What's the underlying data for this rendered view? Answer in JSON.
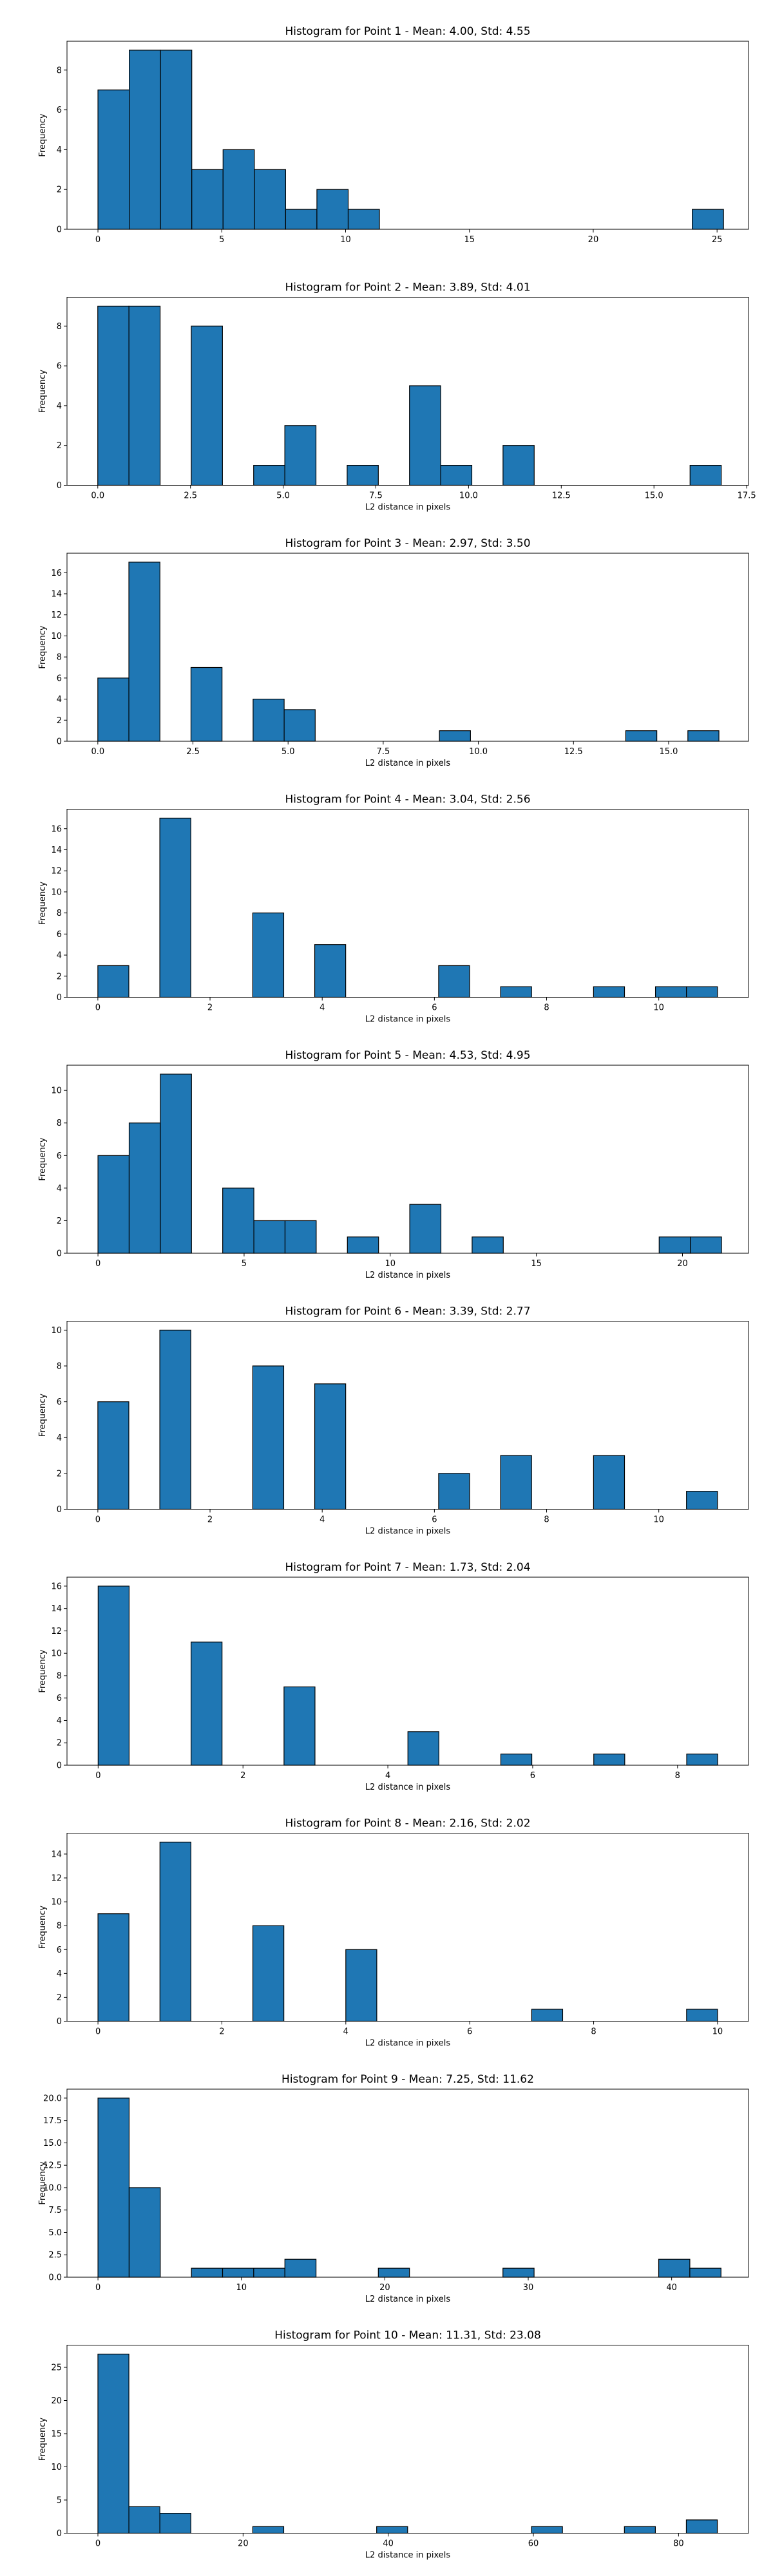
{
  "colors": {
    "bar_fill": "#1f77b4",
    "bar_edge": "#000000",
    "axes": "#000000",
    "background": "#ffffff"
  },
  "chart_data": [
    {
      "type": "bar",
      "title": "Histogram for Point 1 - Mean: 4.00, Std: 4.55",
      "xlabel": "",
      "ylabel": "Frequency",
      "xlim": [
        -1.25,
        26.27
      ],
      "ylim": [
        0,
        9.45
      ],
      "xticks": [
        0,
        5,
        10,
        15,
        20,
        25
      ],
      "xtick_labels": [
        "0",
        "5",
        "10",
        "15",
        "20",
        "25"
      ],
      "yticks": [
        0,
        2,
        4,
        6,
        8
      ],
      "ytick_labels": [
        "0",
        "2",
        "4",
        "6",
        "8"
      ],
      "bin_start": 0,
      "bin_width": 1.263,
      "counts": [
        7,
        9,
        9,
        3,
        4,
        3,
        1,
        2,
        1,
        0,
        0,
        0,
        0,
        0,
        0,
        0,
        0,
        0,
        0,
        1
      ]
    },
    {
      "type": "bar",
      "title": "Histogram for Point 2 - Mean: 3.89, Std: 4.01",
      "xlabel": "L2 distance in pixels",
      "ylabel": "Frequency",
      "xlim": [
        -0.83,
        17.55
      ],
      "ylim": [
        0,
        9.45
      ],
      "xticks": [
        0,
        2.5,
        5,
        7.5,
        10,
        12.5,
        15,
        17.5
      ],
      "xtick_labels": [
        "0.0",
        "2.5",
        "5.0",
        "7.5",
        "10.0",
        "12.5",
        "15.0",
        "17.5"
      ],
      "yticks": [
        0,
        2,
        4,
        6,
        8
      ],
      "ytick_labels": [
        "0",
        "2",
        "4",
        "6",
        "8"
      ],
      "bin_start": 0,
      "bin_width": 0.8407,
      "counts": [
        9,
        9,
        0,
        8,
        0,
        1,
        3,
        0,
        1,
        0,
        5,
        1,
        0,
        2,
        0,
        0,
        0,
        0,
        0,
        1
      ]
    },
    {
      "type": "bar",
      "title": "Histogram for Point 3 - Mean: 2.97, Std: 3.50",
      "xlabel": "L2 distance in pixels",
      "ylabel": "Frequency",
      "xlim": [
        -0.81,
        17.1
      ],
      "ylim": [
        0,
        17.85
      ],
      "xticks": [
        0,
        2.5,
        5,
        7.5,
        10,
        12.5,
        15
      ],
      "xtick_labels": [
        "0.0",
        "2.5",
        "5.0",
        "7.5",
        "10.0",
        "12.5",
        "15.0"
      ],
      "yticks": [
        0,
        2,
        4,
        6,
        8,
        10,
        12,
        14,
        16
      ],
      "ytick_labels": [
        "0",
        "2",
        "4",
        "6",
        "8",
        "10",
        "12",
        "14",
        "16"
      ],
      "bin_start": 0,
      "bin_width": 0.8161,
      "counts": [
        6,
        17,
        0,
        7,
        0,
        4,
        3,
        0,
        0,
        0,
        0,
        1,
        0,
        0,
        0,
        0,
        0,
        1,
        0,
        1
      ]
    },
    {
      "type": "bar",
      "title": "Histogram for Point 4 - Mean: 3.04, Std: 2.56",
      "xlabel": "L2 distance in pixels",
      "ylabel": "Frequency",
      "xlim": [
        -0.55,
        11.6
      ],
      "ylim": [
        0,
        17.85
      ],
      "xticks": [
        0,
        2,
        4,
        6,
        8,
        10
      ],
      "xtick_labels": [
        "0",
        "2",
        "4",
        "6",
        "8",
        "10"
      ],
      "yticks": [
        0,
        2,
        4,
        6,
        8,
        10,
        12,
        14,
        16
      ],
      "ytick_labels": [
        "0",
        "2",
        "4",
        "6",
        "8",
        "10",
        "12",
        "14",
        "16"
      ],
      "bin_start": 0,
      "bin_width": 0.5523,
      "counts": [
        3,
        0,
        17,
        0,
        0,
        8,
        0,
        5,
        0,
        0,
        0,
        3,
        0,
        1,
        0,
        0,
        1,
        0,
        1,
        1
      ]
    },
    {
      "type": "bar",
      "title": "Histogram for Point 5 - Mean: 4.53, Std: 4.95",
      "xlabel": "L2 distance in pixels",
      "ylabel": "Frequency",
      "xlim": [
        -1.06,
        22.26
      ],
      "ylim": [
        0,
        11.55
      ],
      "xticks": [
        0,
        5,
        10,
        15,
        20
      ],
      "xtick_labels": [
        "0",
        "5",
        "10",
        "15",
        "20"
      ],
      "yticks": [
        0,
        2,
        4,
        6,
        8,
        10
      ],
      "ytick_labels": [
        "0",
        "2",
        "4",
        "6",
        "8",
        "10"
      ],
      "bin_start": 0,
      "bin_width": 1.0668,
      "counts": [
        6,
        8,
        11,
        0,
        4,
        2,
        2,
        0,
        1,
        0,
        3,
        0,
        1,
        0,
        0,
        0,
        0,
        0,
        1,
        1
      ]
    },
    {
      "type": "bar",
      "title": "Histogram for Point 6 - Mean: 3.39, Std: 2.77",
      "xlabel": "L2 distance in pixels",
      "ylabel": "Frequency",
      "xlim": [
        -0.55,
        11.6
      ],
      "ylim": [
        0,
        10.5
      ],
      "xticks": [
        0,
        2,
        4,
        6,
        8,
        10
      ],
      "xtick_labels": [
        "0",
        "2",
        "4",
        "6",
        "8",
        "10"
      ],
      "yticks": [
        0,
        2,
        4,
        6,
        8,
        10
      ],
      "ytick_labels": [
        "0",
        "2",
        "4",
        "6",
        "8",
        "10"
      ],
      "bin_start": 0,
      "bin_width": 0.5523,
      "counts": [
        6,
        0,
        10,
        0,
        0,
        8,
        0,
        7,
        0,
        0,
        0,
        2,
        0,
        3,
        0,
        0,
        3,
        0,
        0,
        1
      ]
    },
    {
      "type": "bar",
      "title": "Histogram for Point 7 - Mean: 1.73, Std: 2.04",
      "xlabel": "L2 distance in pixels",
      "ylabel": "Frequency",
      "xlim": [
        -0.43,
        8.98
      ],
      "ylim": [
        0,
        16.8
      ],
      "xticks": [
        0,
        2,
        4,
        6,
        8
      ],
      "xtick_labels": [
        "0",
        "2",
        "4",
        "6",
        "8"
      ],
      "yticks": [
        0,
        2,
        4,
        6,
        8,
        10,
        12,
        14,
        16
      ],
      "ytick_labels": [
        "0",
        "2",
        "4",
        "6",
        "8",
        "10",
        "12",
        "14",
        "16"
      ],
      "bin_start": 0,
      "bin_width": 0.4277,
      "counts": [
        16,
        0,
        0,
        11,
        0,
        0,
        7,
        0,
        0,
        0,
        3,
        0,
        0,
        1,
        0,
        0,
        1,
        0,
        0,
        1
      ]
    },
    {
      "type": "bar",
      "title": "Histogram for Point 8 - Mean: 2.16, Std: 2.02",
      "xlabel": "L2 distance in pixels",
      "ylabel": "Frequency",
      "xlim": [
        -0.5,
        10.5
      ],
      "ylim": [
        0,
        15.75
      ],
      "xticks": [
        0,
        2,
        4,
        6,
        8,
        10
      ],
      "xtick_labels": [
        "0",
        "2",
        "4",
        "6",
        "8",
        "10"
      ],
      "yticks": [
        0,
        2,
        4,
        6,
        8,
        10,
        12,
        14
      ],
      "ytick_labels": [
        "0",
        "2",
        "4",
        "6",
        "8",
        "10",
        "12",
        "14"
      ],
      "bin_start": 0,
      "bin_width": 0.5,
      "counts": [
        9,
        0,
        15,
        0,
        0,
        8,
        0,
        0,
        6,
        0,
        0,
        0,
        0,
        0,
        1,
        0,
        0,
        0,
        0,
        1
      ]
    },
    {
      "type": "bar",
      "title": "Histogram for Point 9 - Mean: 7.25, Std: 11.62",
      "xlabel": "L2 distance in pixels",
      "ylabel": "Frequency",
      "xlim": [
        -2.16,
        45.36
      ],
      "ylim": [
        0,
        21
      ],
      "xticks": [
        0,
        10,
        20,
        30,
        40
      ],
      "xtick_labels": [
        "0",
        "10",
        "20",
        "30",
        "40"
      ],
      "yticks": [
        0,
        2.5,
        5,
        7.5,
        10,
        12.5,
        15,
        17.5,
        20
      ],
      "ytick_labels": [
        "0.0",
        "2.5",
        "5.0",
        "7.5",
        "10.0",
        "12.5",
        "15.0",
        "17.5",
        "20.0"
      ],
      "bin_start": 0,
      "bin_width": 2.172,
      "counts": [
        20,
        10,
        0,
        1,
        1,
        1,
        2,
        0,
        0,
        1,
        0,
        0,
        0,
        1,
        0,
        0,
        0,
        0,
        2,
        1
      ]
    },
    {
      "type": "bar",
      "title": "Histogram for Point 10 - Mean: 11.31, Std: 23.08",
      "xlabel": "L2 distance in pixels",
      "ylabel": "Frequency",
      "xlim": [
        -4.26,
        89.64
      ],
      "ylim": [
        0,
        28.35
      ],
      "xticks": [
        0,
        20,
        40,
        60,
        80
      ],
      "xtick_labels": [
        "0",
        "20",
        "40",
        "60",
        "80"
      ],
      "yticks": [
        0,
        5,
        10,
        15,
        20,
        25
      ],
      "ytick_labels": [
        "0",
        "5",
        "10",
        "15",
        "20",
        "25"
      ],
      "bin_start": 0,
      "bin_width": 4.267,
      "counts": [
        27,
        4,
        3,
        0,
        0,
        1,
        0,
        0,
        0,
        1,
        0,
        0,
        0,
        0,
        1,
        0,
        0,
        1,
        0,
        2
      ]
    }
  ]
}
